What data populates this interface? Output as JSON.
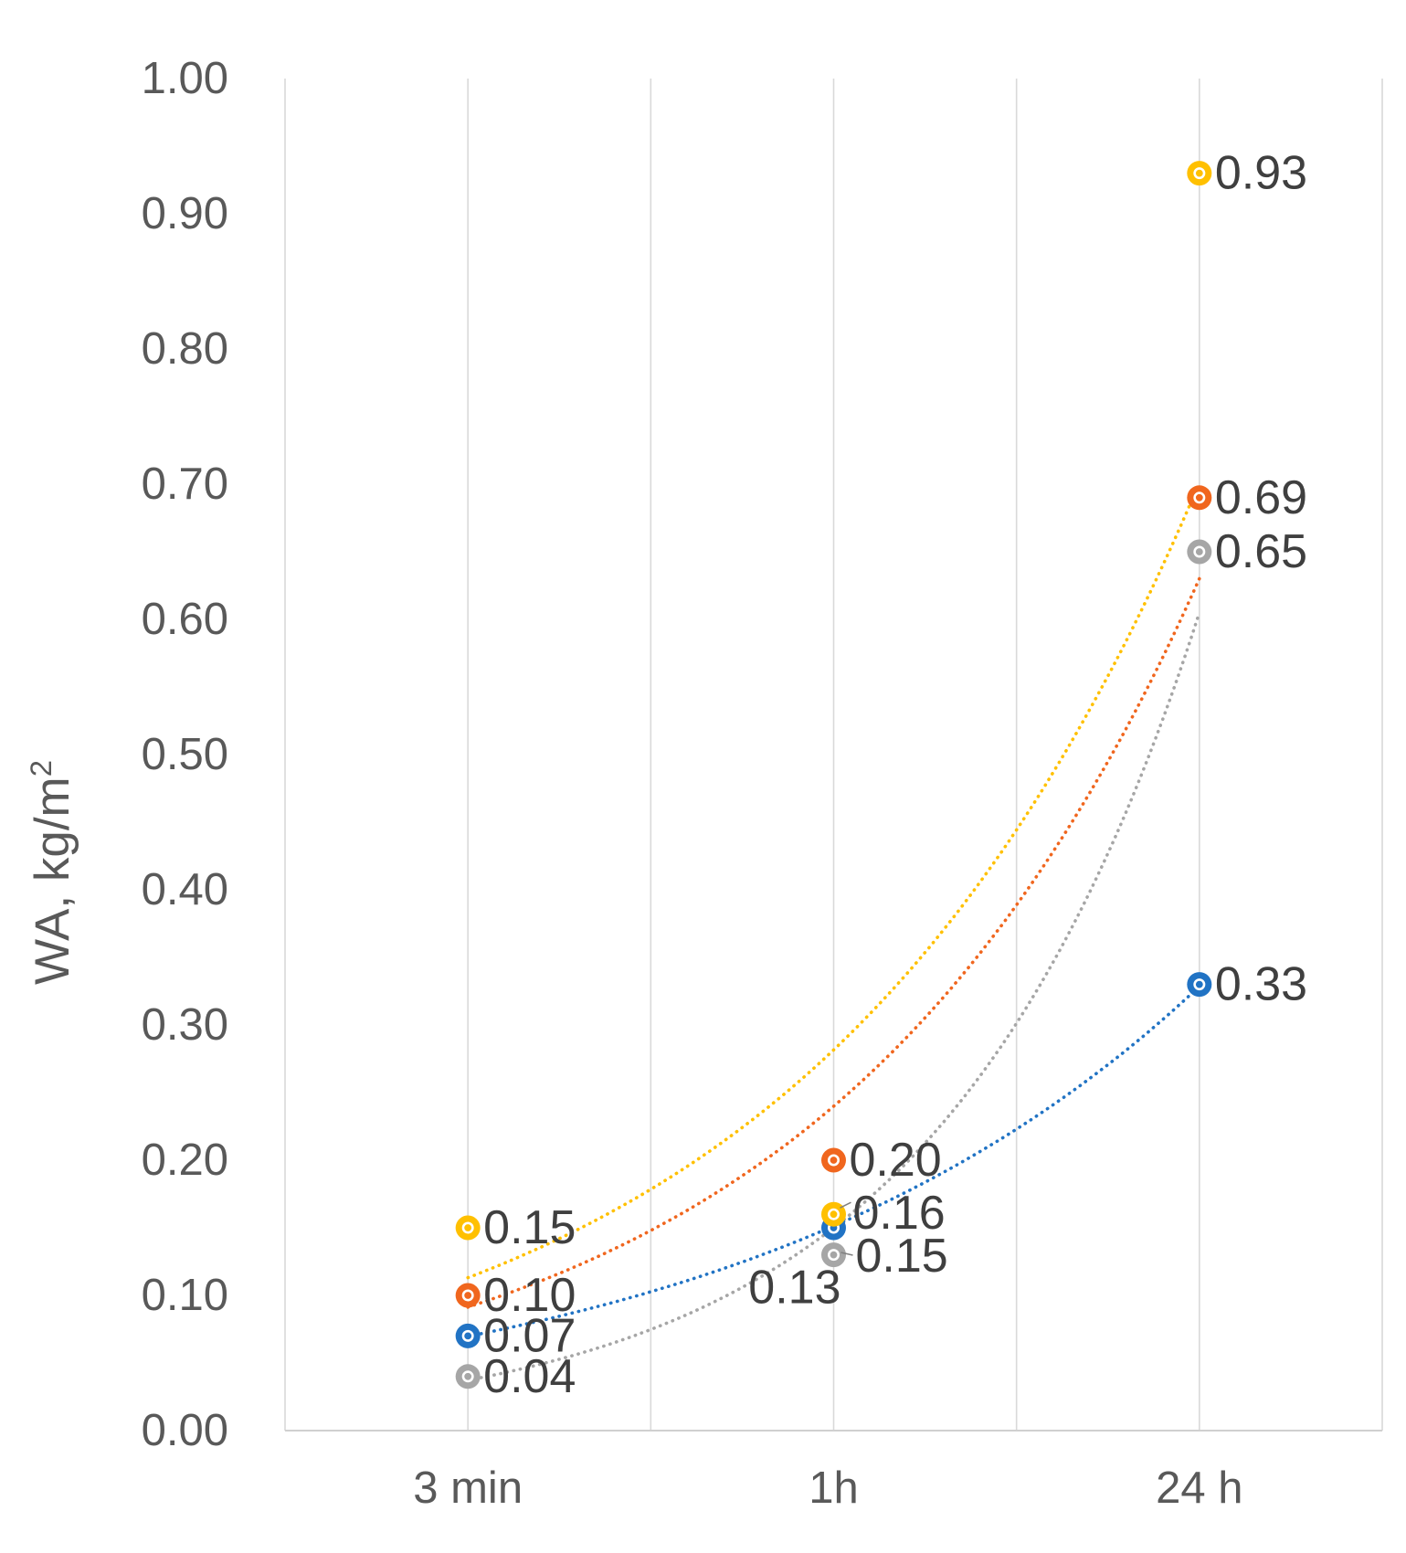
{
  "chart_data": {
    "type": "line",
    "title": "",
    "ylabel_base": "WA, kg/m",
    "ylabel_sup": "2",
    "categories": [
      "3 min",
      "1h",
      "24 h"
    ],
    "ylim": [
      0.0,
      1.0
    ],
    "ytick_step": 0.1,
    "ytick_labels": [
      "0.00",
      "0.10",
      "0.20",
      "0.30",
      "0.40",
      "0.50",
      "0.60",
      "0.70",
      "0.80",
      "0.90",
      "1.00"
    ],
    "grid": "vertical-only",
    "legend": "none",
    "line_style": "dotted-exponential-trendline",
    "marker_style": "filled-circle-with-white-ring",
    "colors": {
      "grid_line": "#d9d9d9",
      "axis_line": "#d0d0d0",
      "tick_text": "#595959",
      "data_label_text": "#3f3f3f",
      "leader_line": "#808080"
    },
    "series": [
      {
        "name": "gold",
        "color": "#FFC000",
        "values": [
          0.15,
          0.16,
          0.93
        ],
        "labels": [
          "0.15",
          "0.16",
          "0.93"
        ],
        "label_placement": [
          "right",
          "leader-right",
          "right"
        ]
      },
      {
        "name": "orange",
        "color": "#F0661E",
        "values": [
          0.1,
          0.2,
          0.69
        ],
        "labels": [
          "0.10",
          "0.20",
          "0.69"
        ],
        "label_placement": [
          "right",
          "right",
          "right"
        ]
      },
      {
        "name": "gray",
        "color": "#A6A6A6",
        "values": [
          0.04,
          0.13,
          0.65
        ],
        "labels": [
          "0.04",
          "0.13",
          "0.65"
        ],
        "label_placement": [
          "right",
          "below-left",
          "right"
        ]
      },
      {
        "name": "blue",
        "color": "#2173C4",
        "values": [
          0.07,
          0.15,
          0.33
        ],
        "labels": [
          "0.07",
          "0.15",
          "0.33"
        ],
        "label_placement": [
          "right",
          "leader-right-low",
          "right"
        ]
      }
    ]
  }
}
